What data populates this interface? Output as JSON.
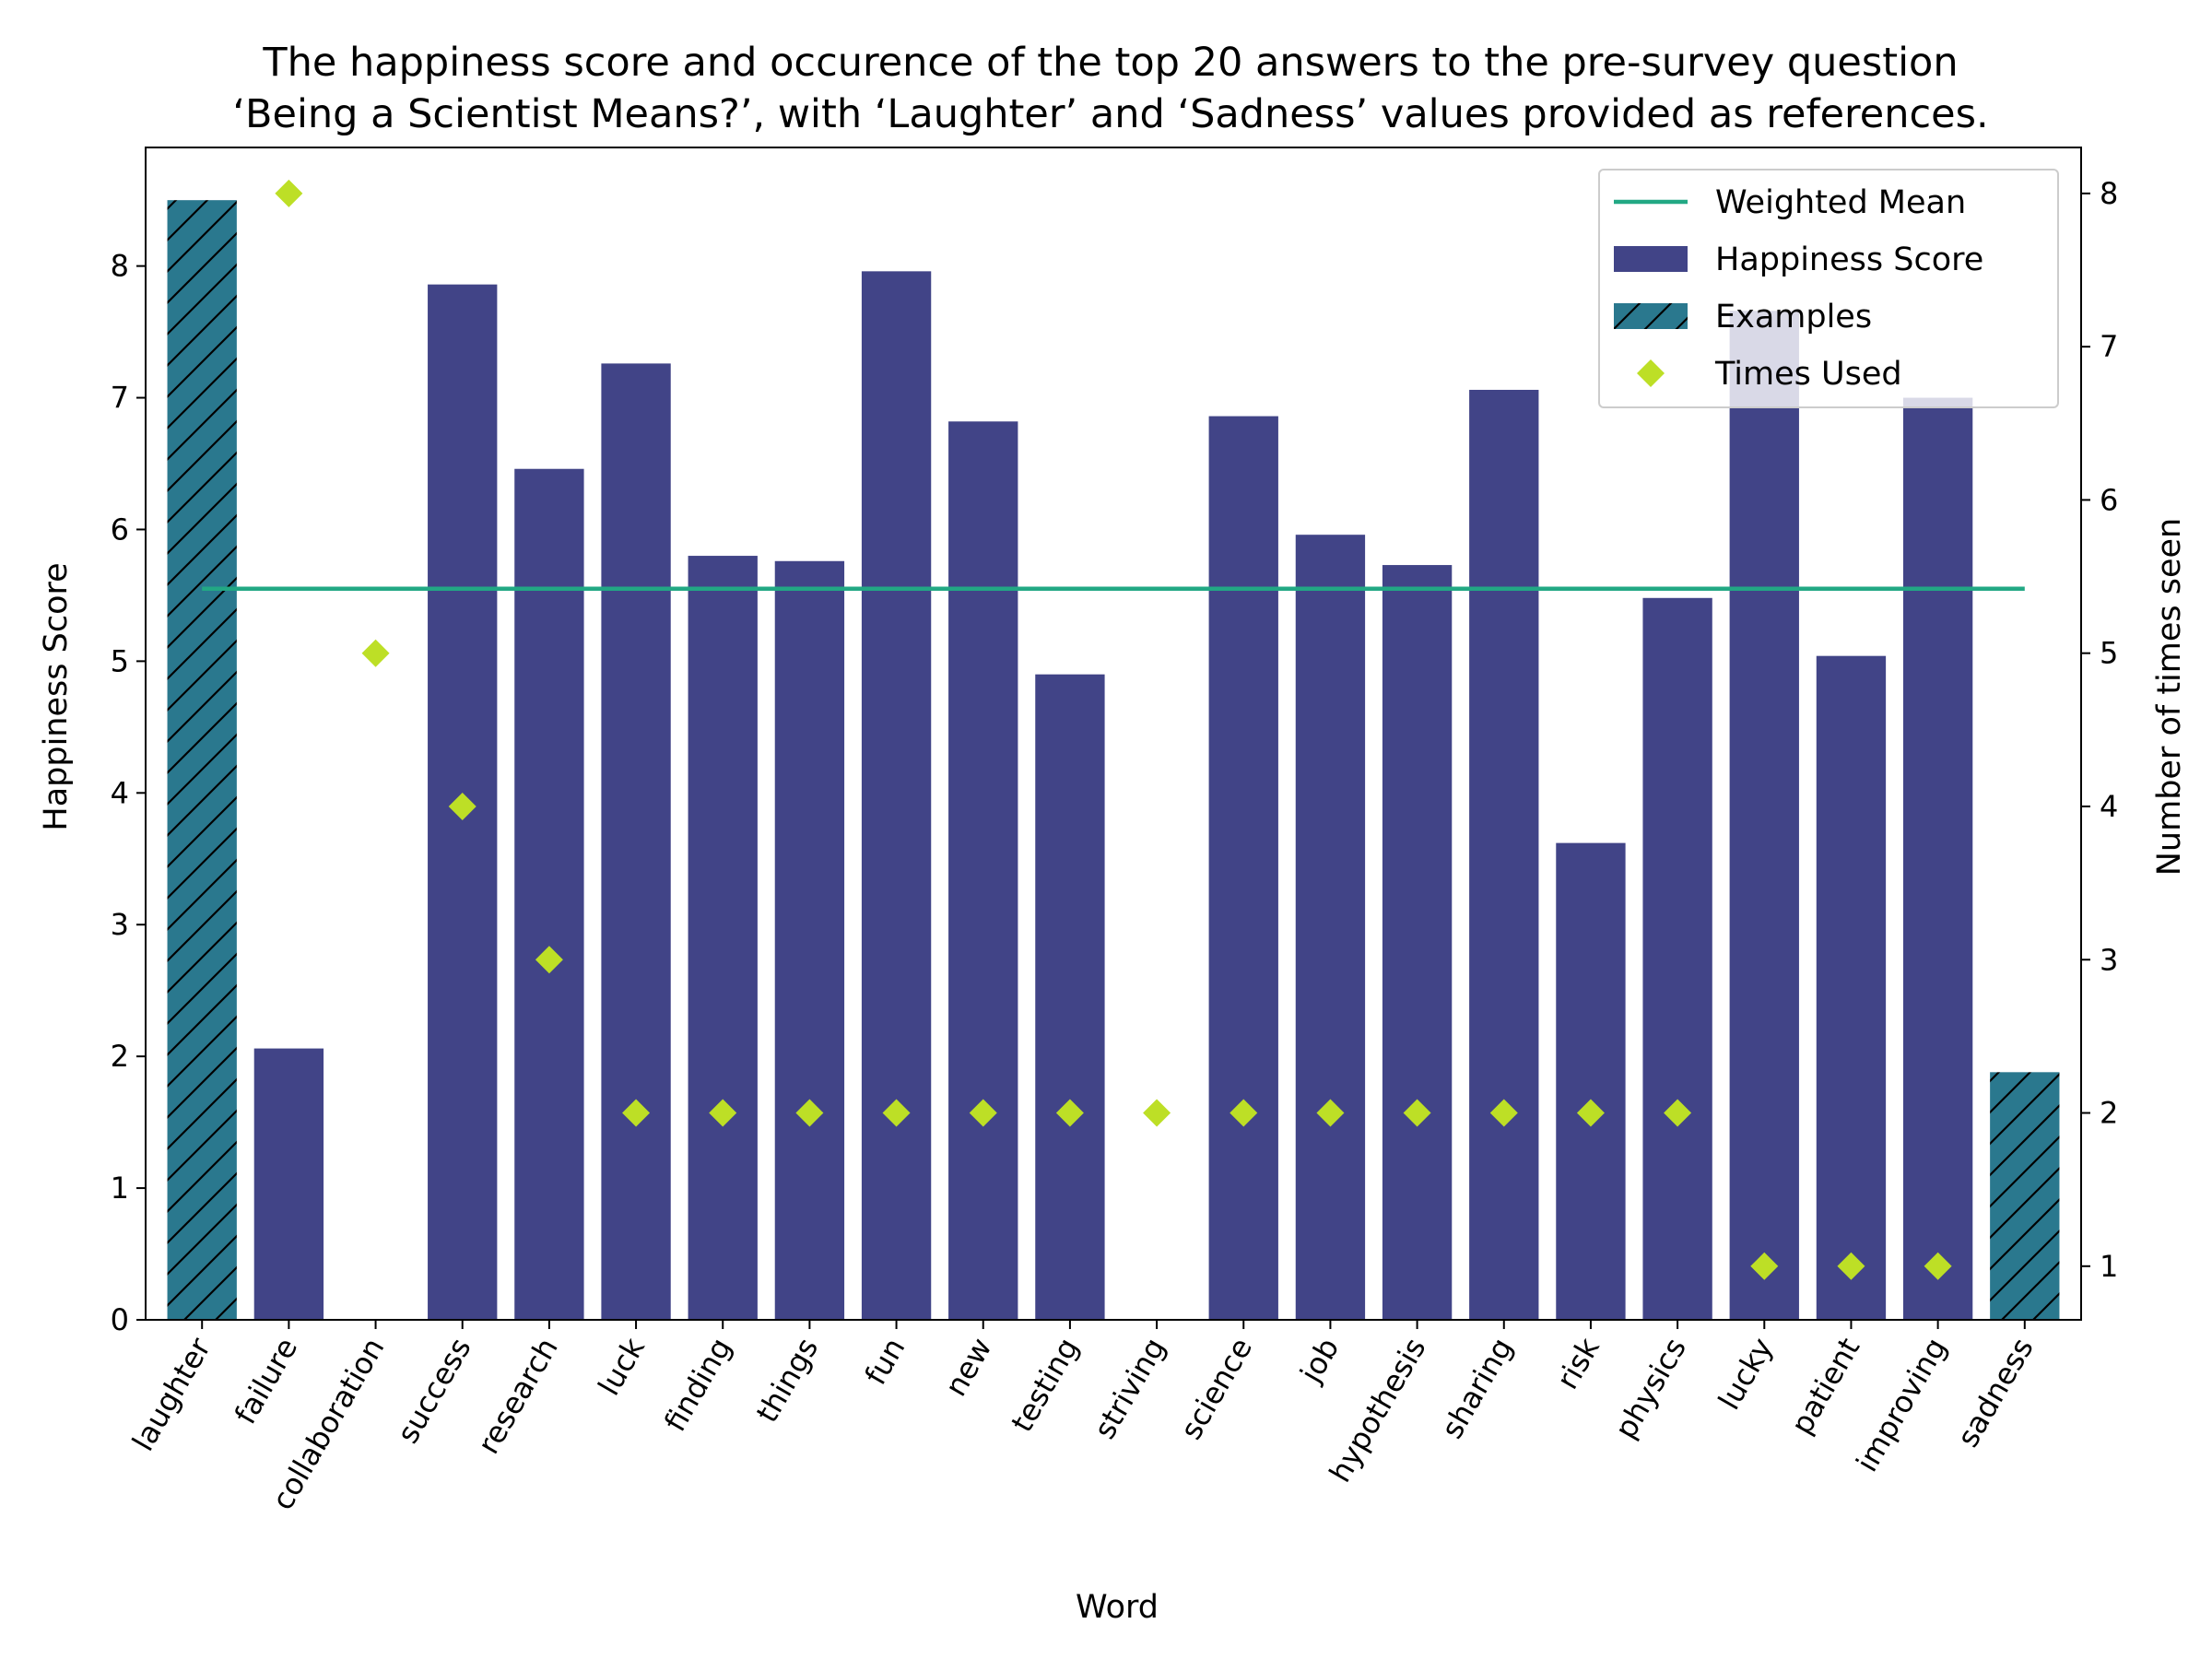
{
  "chart_data": {
    "type": "bar",
    "title_lines": [
      "The happiness score and occurence of the top 20 answers to the pre-survey question",
      "‘Being a Scientist Means?’, with ‘Laughter’ and ‘Sadness’ values provided as references."
    ],
    "xlabel": "Word",
    "ylabel": "Happiness Score",
    "y2label": "Number of times seen",
    "ylim": [
      0,
      8.9
    ],
    "y2lim": [
      0.65,
      8.3
    ],
    "yticks": [
      0,
      1,
      2,
      3,
      4,
      5,
      6,
      7,
      8
    ],
    "y2ticks": [
      1,
      2,
      3,
      4,
      5,
      6,
      7,
      8
    ],
    "categories": [
      "laughter",
      "failure",
      "collaboration",
      "success",
      "research",
      "luck",
      "finding",
      "things",
      "fun",
      "new",
      "testing",
      "striving",
      "science",
      "job",
      "hypothesis",
      "sharing",
      "risk",
      "physics",
      "lucky",
      "patient",
      "improving",
      "sadness"
    ],
    "weighted_mean": 5.55,
    "series": [
      {
        "name": "Happiness Score",
        "type": "bar",
        "color": "#414487",
        "values": [
          null,
          2.06,
          null,
          7.86,
          6.46,
          7.26,
          5.8,
          5.76,
          7.96,
          6.82,
          4.9,
          null,
          6.86,
          5.96,
          5.73,
          7.06,
          3.62,
          5.48,
          7.66,
          5.04,
          7.0,
          null
        ]
      },
      {
        "name": "Examples",
        "type": "bar",
        "color": "#2a788e",
        "hatch": true,
        "values": [
          8.5,
          null,
          null,
          null,
          null,
          null,
          null,
          null,
          null,
          null,
          null,
          null,
          null,
          null,
          null,
          null,
          null,
          null,
          null,
          null,
          null,
          1.88
        ]
      },
      {
        "name": "Times Used",
        "type": "scatter",
        "axis": "right",
        "marker": "diamond",
        "color": "#bddf26",
        "values": [
          null,
          8,
          5,
          4,
          3,
          2,
          2,
          2,
          2,
          2,
          2,
          2,
          2,
          2,
          2,
          2,
          2,
          2,
          1,
          1,
          1,
          null
        ]
      },
      {
        "name": "Weighted Mean",
        "type": "line",
        "color": "#22a884"
      }
    ],
    "legend": {
      "position": "top-right",
      "items": [
        "Weighted Mean",
        "Happiness Score",
        "Examples",
        "Times Used"
      ]
    },
    "grid": false
  }
}
